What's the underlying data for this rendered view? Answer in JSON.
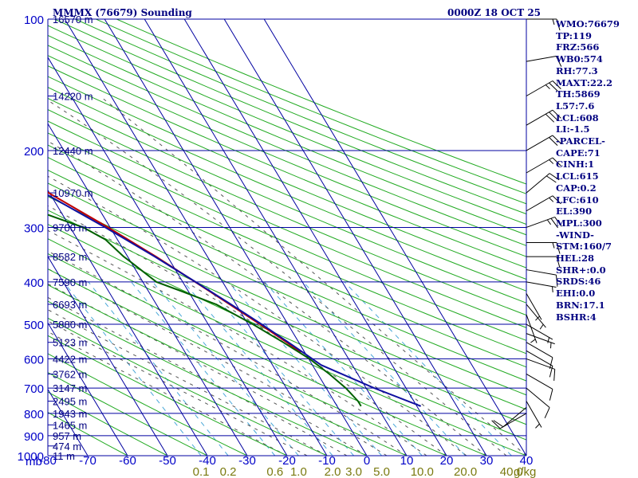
{
  "header": {
    "station": "MMMX (76679) Sounding",
    "time": "0000Z 18 OCT 25"
  },
  "chart_data": {
    "type": "skew-t",
    "ylabel": "mb",
    "xlabel_units": "g/kg",
    "xlim": [
      -80,
      40
    ],
    "pressure_range": [
      100,
      1000
    ],
    "pressure_ticks": [
      100,
      200,
      300,
      400,
      500,
      600,
      700,
      800,
      900,
      1000
    ],
    "temperature_ticks": [
      -80,
      -70,
      -60,
      -50,
      -40,
      -30,
      -20,
      -10,
      0,
      10,
      20,
      30,
      40
    ],
    "temperature_tick_labels": [
      "-80",
      "-70",
      "-60",
      "-50",
      "-40",
      "-30",
      "-20",
      "-10",
      "0",
      "10",
      "20",
      "30",
      "40"
    ],
    "mixing_ratio_ticks": [
      {
        "value": 0.1,
        "label": "0.1"
      },
      {
        "value": 0.2,
        "label": "0.2"
      },
      {
        "value": 0.6,
        "label": "0.6"
      },
      {
        "value": 1.0,
        "label": "1.0"
      },
      {
        "value": 2.0,
        "label": "2.0"
      },
      {
        "value": 3.0,
        "label": "3.0"
      },
      {
        "value": 5.0,
        "label": "5.0"
      },
      {
        "value": 10.0,
        "label": "10.0"
      },
      {
        "value": 20.0,
        "label": "20.0"
      },
      {
        "value": 40.0,
        "label": "40.0"
      }
    ],
    "height_labels": [
      {
        "p": 100,
        "label": "16570 m"
      },
      {
        "p": 150,
        "label": "14220 m"
      },
      {
        "p": 200,
        "label": "12440 m"
      },
      {
        "p": 250,
        "label": "10970 m"
      },
      {
        "p": 300,
        "label": "9700 m"
      },
      {
        "p": 350,
        "label": "8582 m"
      },
      {
        "p": 400,
        "label": "7590 m"
      },
      {
        "p": 450,
        "label": "6693 m"
      },
      {
        "p": 500,
        "label": "5880 m"
      },
      {
        "p": 550,
        "label": "5123 m"
      },
      {
        "p": 600,
        "label": "4422 m"
      },
      {
        "p": 650,
        "label": "3762 m"
      },
      {
        "p": 700,
        "label": "3147 m"
      },
      {
        "p": 750,
        "label": "2495 m"
      },
      {
        "p": 800,
        "label": "1943 m"
      },
      {
        "p": 850,
        "label": "1465 m"
      },
      {
        "p": 900,
        "label": "957 m"
      },
      {
        "p": 950,
        "label": "474 m"
      },
      {
        "p": 1000,
        "label": "11 m"
      }
    ],
    "series": [
      {
        "name": "Temperature",
        "color": "#c00000",
        "points": [
          {
            "p": 100,
            "t": -80.5
          },
          {
            "p": 120,
            "t": -80.3
          },
          {
            "p": 130,
            "t": -79.8
          },
          {
            "p": 150,
            "t": -72.2
          },
          {
            "p": 175,
            "t": -62.0
          },
          {
            "p": 200,
            "t": -53.4
          },
          {
            "p": 250,
            "t": -40.2
          },
          {
            "p": 300,
            "t": -30.5
          },
          {
            "p": 350,
            "t": -22.9
          },
          {
            "p": 400,
            "t": -16.9
          },
          {
            "p": 450,
            "t": -11.6
          },
          {
            "p": 500,
            "t": -7.0
          },
          {
            "p": 550,
            "t": -3.0
          },
          {
            "p": 580,
            "t": -1.0
          }
        ]
      },
      {
        "name": "Dewpoint",
        "color": "#006000",
        "points": [
          {
            "p": 130,
            "t": -79.6
          },
          {
            "p": 150,
            "t": -76.5
          },
          {
            "p": 175,
            "t": -70.0
          },
          {
            "p": 200,
            "t": -63.1
          },
          {
            "p": 250,
            "t": -49.0
          },
          {
            "p": 275,
            "t": -45.8
          },
          {
            "p": 300,
            "t": -36.7
          },
          {
            "p": 320,
            "t": -33.0
          },
          {
            "p": 350,
            "t": -31.0
          },
          {
            "p": 360,
            "t": -30.0
          },
          {
            "p": 400,
            "t": -26.6
          },
          {
            "p": 420,
            "t": -21.7
          },
          {
            "p": 450,
            "t": -15.0
          },
          {
            "p": 500,
            "t": -8.8
          },
          {
            "p": 550,
            "t": -3.9
          },
          {
            "p": 600,
            "t": 0.2
          },
          {
            "p": 650,
            "t": 2.9
          },
          {
            "p": 700,
            "t": 4.9
          },
          {
            "p": 750,
            "t": 6.0
          },
          {
            "p": 770,
            "t": 6.0
          }
        ]
      },
      {
        "name": "Parcel",
        "color": "#1010a0",
        "points": [
          {
            "p": 130,
            "t": -80.5
          },
          {
            "p": 150,
            "t": -73.5
          },
          {
            "p": 200,
            "t": -55.0
          },
          {
            "p": 250,
            "t": -41.4
          },
          {
            "p": 300,
            "t": -31.2
          },
          {
            "p": 350,
            "t": -23.2
          },
          {
            "p": 400,
            "t": -16.8
          },
          {
            "p": 450,
            "t": -11.3
          },
          {
            "p": 500,
            "t": -6.6
          },
          {
            "p": 550,
            "t": -2.6
          },
          {
            "p": 600,
            "t": 0.9
          },
          {
            "p": 620,
            "t": 2.2
          },
          {
            "p": 700,
            "t": 12.0
          },
          {
            "p": 770,
            "t": 21.0
          }
        ]
      }
    ],
    "wind_barbs": [
      {
        "p": 100,
        "dir": 90,
        "spd": 15
      },
      {
        "p": 125,
        "dir": 80,
        "spd": 10
      },
      {
        "p": 150,
        "dir": 60,
        "spd": 25
      },
      {
        "p": 175,
        "dir": 60,
        "spd": 30
      },
      {
        "p": 200,
        "dir": 60,
        "spd": 20
      },
      {
        "p": 225,
        "dir": 60,
        "spd": 15
      },
      {
        "p": 250,
        "dir": 50,
        "spd": 20
      },
      {
        "p": 275,
        "dir": 60,
        "spd": 15
      },
      {
        "p": 300,
        "dir": 70,
        "spd": 25
      },
      {
        "p": 325,
        "dir": 90,
        "spd": 15
      },
      {
        "p": 350,
        "dir": 90,
        "spd": 10
      },
      {
        "p": 375,
        "dir": 100,
        "spd": 10
      },
      {
        "p": 400,
        "dir": 100,
        "spd": 5
      },
      {
        "p": 425,
        "dir": 150,
        "spd": 5
      },
      {
        "p": 450,
        "dir": 140,
        "spd": 5
      },
      {
        "p": 475,
        "dir": 160,
        "spd": 5
      },
      {
        "p": 500,
        "dir": 120,
        "spd": 5
      },
      {
        "p": 525,
        "dir": 110,
        "spd": 5
      },
      {
        "p": 550,
        "dir": 120,
        "spd": 10
      },
      {
        "p": 575,
        "dir": 120,
        "spd": 10
      },
      {
        "p": 600,
        "dir": 110,
        "spd": 10
      },
      {
        "p": 650,
        "dir": 120,
        "spd": 10
      },
      {
        "p": 700,
        "dir": 130,
        "spd": 10
      },
      {
        "p": 750,
        "dir": 150,
        "spd": 5
      },
      {
        "p": 775,
        "dir": 230,
        "spd": 10
      },
      {
        "p": 800,
        "dir": 240,
        "spd": 10
      }
    ]
  },
  "indices": [
    "WMO:76679",
    "TP:119",
    "FRZ:566",
    "WB0:574",
    "RH:77.3",
    "MAXT:22.2",
    "TH:5869",
    "L57:7.6",
    "LCL:608",
    "LI:-1.5",
    "-PARCEL-",
    "CAPE:71",
    "CINH:1",
    "LCL:615",
    "CAP:0.2",
    "LFC:610",
    "EL:390",
    "MPL:300",
    "-WIND-",
    "STM:160/7",
    "HEL:28",
    "SHR+:0.0",
    "SRDS:46",
    "EHI:0.0",
    "BRN:17.1",
    "BSHR:4"
  ]
}
